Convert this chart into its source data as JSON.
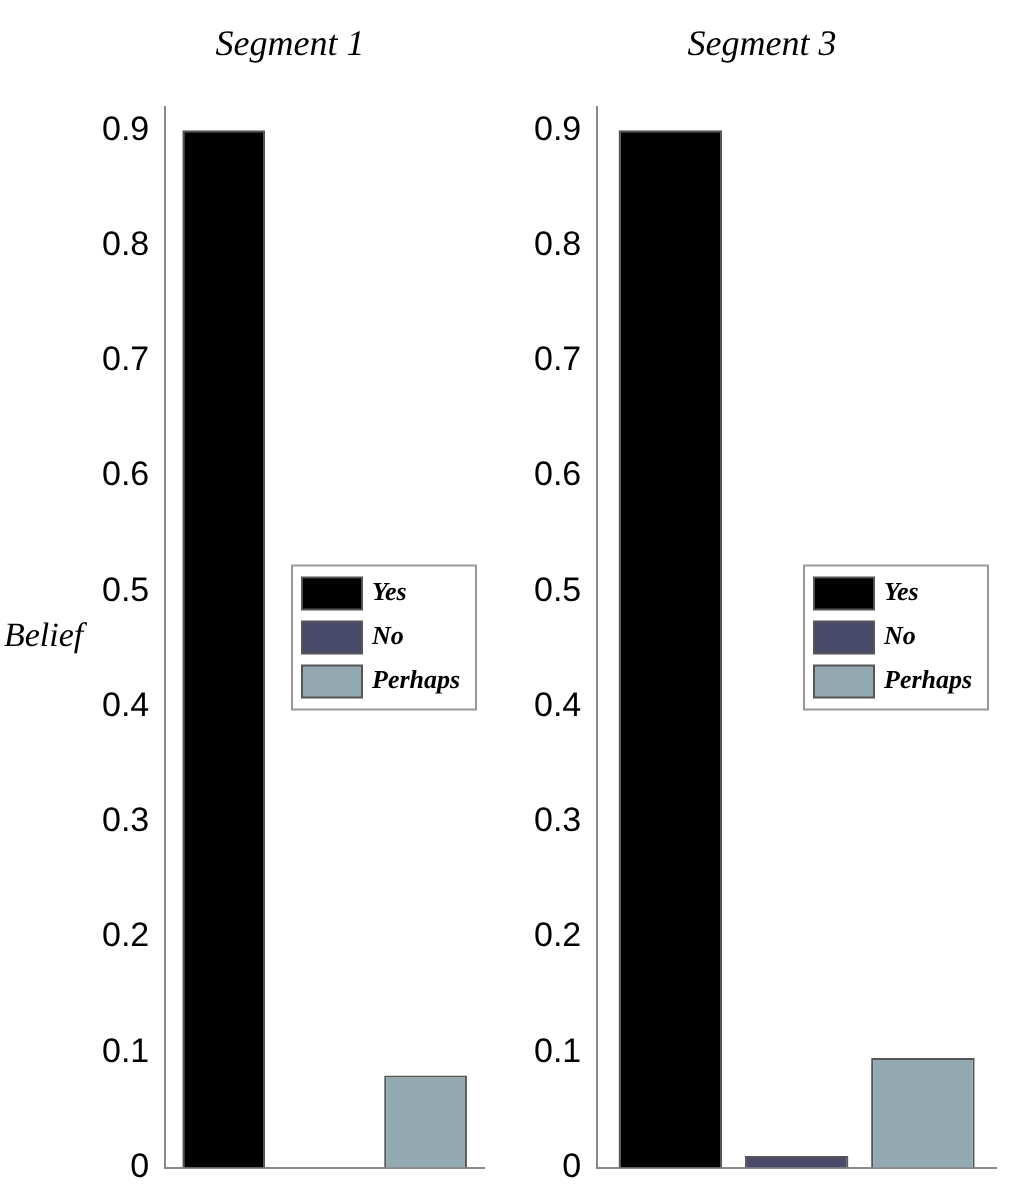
{
  "chart_data": [
    {
      "type": "bar",
      "title": "Segment 1",
      "ylabel": "Belief",
      "categories": [
        null
      ],
      "series": [
        {
          "name": "Yes",
          "color": "#000000",
          "values": [
            0.9
          ]
        },
        {
          "name": "No",
          "color": "#4a4a6a",
          "values": [
            0
          ]
        },
        {
          "name": "Perhaps",
          "color": "#93a9b1",
          "values": [
            0.08
          ]
        }
      ],
      "ylim": [
        0,
        0.92
      ],
      "yticks": [
        0,
        0.1,
        0.2,
        0.3,
        0.4,
        0.5,
        0.6,
        0.7,
        0.8,
        0.9
      ],
      "tick_labels": "y",
      "legend": "right"
    },
    {
      "type": "bar",
      "title": "Segment 3",
      "categories": [
        null
      ],
      "series": [
        {
          "name": "Yes",
          "color": "#000000",
          "values": [
            0.9
          ]
        },
        {
          "name": "No",
          "color": "#4a4a6a",
          "values": [
            0.01
          ]
        },
        {
          "name": "Perhaps",
          "color": "#93a9b1",
          "values": [
            0.095
          ]
        }
      ],
      "ylim": [
        0,
        0.92
      ],
      "yticks": [
        0,
        0.1,
        0.2,
        0.3,
        0.4,
        0.5,
        0.6,
        0.7,
        0.8,
        0.9
      ],
      "tick_labels": "y",
      "legend": "right"
    }
  ]
}
